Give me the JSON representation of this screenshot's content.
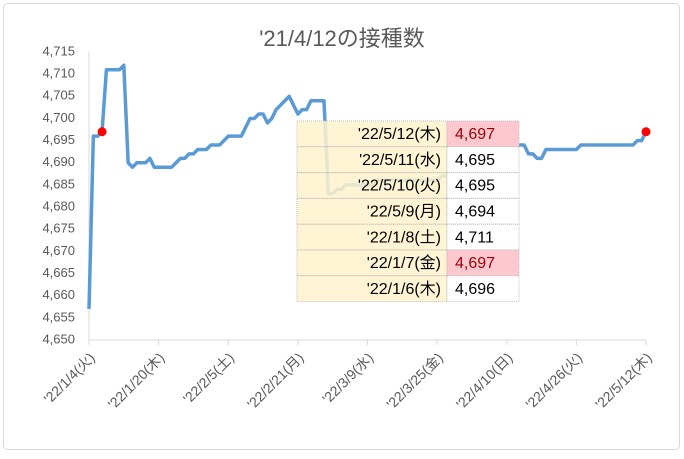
{
  "chart_data": {
    "type": "line",
    "title": "'21/4/12の接種数",
    "categories": [
      "'22/1/4(火)",
      null,
      null,
      null,
      null,
      null,
      null,
      null,
      null,
      null,
      null,
      null,
      null,
      null,
      null,
      null,
      "'22/1/20(木)",
      null,
      null,
      null,
      null,
      null,
      null,
      null,
      null,
      null,
      null,
      null,
      null,
      null,
      null,
      null,
      "'22/2/5(土)",
      null,
      null,
      null,
      null,
      null,
      null,
      null,
      null,
      null,
      null,
      null,
      null,
      null,
      null,
      null,
      "'22/2/21(月)",
      null,
      null,
      null,
      null,
      null,
      null,
      null,
      null,
      null,
      null,
      null,
      null,
      null,
      null,
      null,
      "'22/3/9(水)",
      null,
      null,
      null,
      null,
      null,
      null,
      null,
      null,
      null,
      null,
      null,
      null,
      null,
      null,
      null,
      "'22/3/25(金)",
      null,
      null,
      null,
      null,
      null,
      null,
      null,
      null,
      null,
      null,
      null,
      null,
      null,
      null,
      null,
      "'22/4/10(日)",
      null,
      null,
      null,
      null,
      null,
      null,
      null,
      null,
      null,
      null,
      null,
      null,
      null,
      null,
      null,
      "'22/4/26(火)",
      null,
      null,
      null,
      null,
      null,
      null,
      null,
      null,
      null,
      null,
      null,
      null,
      null,
      null,
      null,
      "'22/5/12(木)"
    ],
    "values": [
      4657,
      4696,
      4696,
      4697,
      4711,
      4711,
      4711,
      4711,
      4712,
      4690,
      4689,
      4690,
      4690,
      4690,
      4691,
      4689,
      4689,
      4689,
      4689,
      4689,
      4690,
      4691,
      4691,
      4692,
      4692,
      4693,
      4693,
      4693,
      4694,
      4694,
      4694,
      4695,
      4696,
      4696,
      4696,
      4696,
      4698,
      4700,
      4700,
      4701,
      4701,
      4699,
      4700,
      4702,
      4703,
      4704,
      4705,
      4703,
      4701,
      4702,
      4702,
      4704,
      4704,
      4704,
      4704,
      4683,
      4683,
      4684,
      4684,
      4685,
      4685,
      4685,
      4685,
      4685,
      4685,
      4685,
      4686,
      4686,
      4686,
      4686,
      4686,
      4686,
      4686,
      4686,
      4686,
      4686,
      4686,
      4686,
      4686,
      4686,
      4686,
      4687,
      4687,
      4687,
      4687,
      4687,
      4687,
      4688,
      4688,
      4691,
      4693,
      4694,
      4694,
      4694,
      4694,
      4694,
      4694,
      4694,
      4694,
      4694,
      4694,
      4692,
      4692,
      4691,
      4691,
      4693,
      4693,
      4693,
      4693,
      4693,
      4693,
      4693,
      4693,
      4694,
      4694,
      4694,
      4694,
      4694,
      4694,
      4694,
      4694,
      4694,
      4694,
      4694,
      4694,
      4694,
      4695,
      4695,
      4697
    ],
    "color": "#5b9bd5",
    "markers": [
      3,
      128
    ],
    "marker_color": "#ff0000",
    "ylim": [
      4650,
      4715
    ],
    "yticks": [
      {
        "value": 4650,
        "label": "4,650"
      },
      {
        "value": 4655,
        "label": "4,655"
      },
      {
        "value": 4660,
        "label": "4,660"
      },
      {
        "value": 4665,
        "label": "4,665"
      },
      {
        "value": 4670,
        "label": "4,670"
      },
      {
        "value": 4675,
        "label": "4,675"
      },
      {
        "value": 4680,
        "label": "4,680"
      },
      {
        "value": 4685,
        "label": "4,685"
      },
      {
        "value": 4690,
        "label": "4,690"
      },
      {
        "value": 4695,
        "label": "4,695"
      },
      {
        "value": 4700,
        "label": "4,700"
      },
      {
        "value": 4705,
        "label": "4,705"
      },
      {
        "value": 4710,
        "label": "4,710"
      },
      {
        "value": 4715,
        "label": "4,715"
      }
    ],
    "grid": false,
    "table": {
      "rows": [
        [
          "'22/5/12(木)",
          "4,697"
        ],
        [
          "'22/5/11(水)",
          "4,695"
        ],
        [
          "'22/5/10(火)",
          "4,695"
        ],
        [
          "'22/5/9(月)",
          "4,694"
        ],
        [
          "'22/1/8(土)",
          "4,711"
        ],
        [
          "'22/1/7(金)",
          "4,697"
        ],
        [
          "'22/1/6(木)",
          "4,696"
        ]
      ],
      "highlight_rows": [
        0,
        5
      ]
    }
  }
}
